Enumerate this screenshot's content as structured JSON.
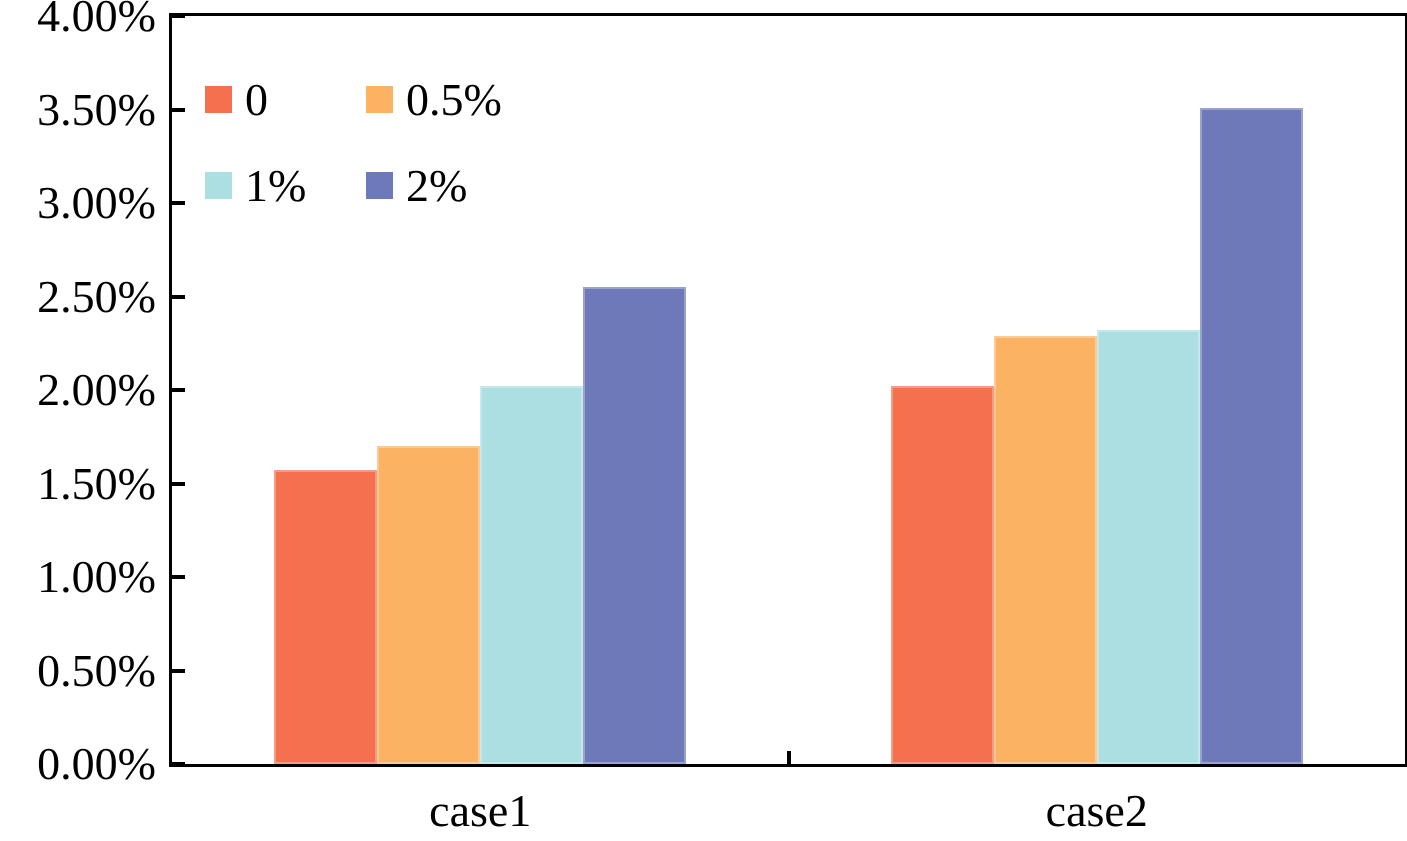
{
  "chart_data": {
    "type": "bar",
    "title": "",
    "categories": [
      "case1",
      "case2"
    ],
    "series": [
      {
        "name": "0",
        "color": "#F4704E",
        "values": [
          1.57,
          2.02
        ]
      },
      {
        "name": "0.5%",
        "color": "#FBB363",
        "values": [
          1.7,
          2.29
        ]
      },
      {
        "name": "1%",
        "color": "#ABDFE2",
        "values": [
          2.02,
          2.32
        ]
      },
      {
        "name": "2%",
        "color": "#6D79B8",
        "values": [
          2.55,
          3.51
        ]
      }
    ],
    "xlabel": "",
    "ylabel": "",
    "ylim": [
      0,
      4
    ],
    "ytick_step": 0.5,
    "ytick_labels": [
      "0.00%",
      "0.50%",
      "1.00%",
      "1.50%",
      "2.00%",
      "2.50%",
      "3.00%",
      "3.50%",
      "4.00%"
    ],
    "grid": false,
    "tick_style": "inward",
    "legend_position": "inside-top-left",
    "axis_color": "#000000",
    "text_color": "#000000",
    "background": "#FFFFFF"
  }
}
